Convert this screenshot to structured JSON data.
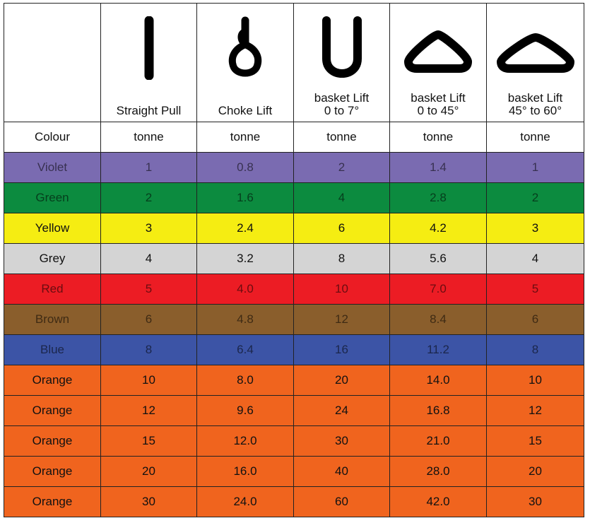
{
  "header": {
    "columns": [
      {
        "label": "",
        "icon": "none"
      },
      {
        "label": "Straight Pull",
        "icon": "straight-pull-sling-icon"
      },
      {
        "label": "Choke Lift",
        "icon": "choke-lift-sling-icon"
      },
      {
        "label": "basket Lift\n0 to 7°",
        "icon": "basket-vertical-sling-icon"
      },
      {
        "label": "basket Lift\n0 to 45°",
        "icon": "basket-45-sling-icon"
      },
      {
        "label": "basket Lift\n45° to 60°",
        "icon": "basket-60-sling-icon"
      }
    ]
  },
  "units": [
    "Colour",
    "tonne",
    "tonne",
    "tonne",
    "tonne",
    "tonne"
  ],
  "rows": [
    {
      "colour": "Violet",
      "bg": "#7a6bb1",
      "values": [
        "1",
        "0.8",
        "2",
        "1.4",
        "1"
      ]
    },
    {
      "colour": "Green",
      "bg": "#0c8b3f",
      "values": [
        "2",
        "1.6",
        "4",
        "2.8",
        "2"
      ]
    },
    {
      "colour": "Yellow",
      "bg": "#f5ed12",
      "values": [
        "3",
        "2.4",
        "6",
        "4.2",
        "3"
      ]
    },
    {
      "colour": "Grey",
      "bg": "#d4d4d4",
      "values": [
        "4",
        "3.2",
        "8",
        "5.6",
        "4"
      ]
    },
    {
      "colour": "Red",
      "bg": "#ec1c24",
      "values": [
        "5",
        "4.0",
        "10",
        "7.0",
        "5"
      ]
    },
    {
      "colour": "Brown",
      "bg": "#8a5e2c",
      "values": [
        "6",
        "4.8",
        "12",
        "8.4",
        "6"
      ]
    },
    {
      "colour": "Blue",
      "bg": "#3c54a6",
      "values": [
        "8",
        "6.4",
        "16",
        "11.2",
        "8"
      ]
    },
    {
      "colour": "Orange",
      "bg": "#f0641e",
      "values": [
        "10",
        "8.0",
        "20",
        "14.0",
        "10"
      ]
    },
    {
      "colour": "Orange",
      "bg": "#f0641e",
      "values": [
        "12",
        "9.6",
        "24",
        "16.8",
        "12"
      ]
    },
    {
      "colour": "Orange",
      "bg": "#f0641e",
      "values": [
        "15",
        "12.0",
        "30",
        "21.0",
        "15"
      ]
    },
    {
      "colour": "Orange",
      "bg": "#f0641e",
      "values": [
        "20",
        "16.0",
        "40",
        "28.0",
        "20"
      ]
    },
    {
      "colour": "Orange",
      "bg": "#f0641e",
      "values": [
        "30",
        "24.0",
        "60",
        "42.0",
        "30"
      ]
    }
  ]
}
